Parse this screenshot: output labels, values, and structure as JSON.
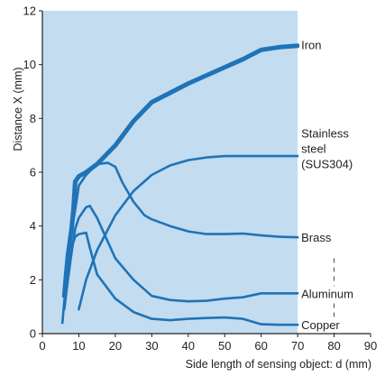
{
  "chart_data": {
    "type": "line",
    "title": "",
    "xlabel": "Side length of sensing object: d (mm)",
    "ylabel": "Distance X (mm)",
    "xlim": [
      0,
      90
    ],
    "ylim": [
      0,
      12
    ],
    "plot_xmax": 70,
    "xticks": [
      0,
      10,
      20,
      30,
      40,
      50,
      60,
      70,
      80,
      90
    ],
    "yticks": [
      0,
      2,
      4,
      6,
      8,
      10,
      12
    ],
    "grid": false,
    "line_color": "#1f73b7",
    "background": "#c3dcf0",
    "series": [
      {
        "name": "Iron",
        "heavy": true,
        "x": [
          6,
          6.5,
          7,
          7.5,
          8,
          8.5,
          9,
          10,
          12,
          15,
          20,
          25,
          30,
          35,
          40,
          45,
          50,
          55,
          60,
          65,
          70
        ],
        "y": [
          1.4,
          2.2,
          2.9,
          3.4,
          3.9,
          4.6,
          5.65,
          5.85,
          6.0,
          6.3,
          7.0,
          7.9,
          8.6,
          8.95,
          9.3,
          9.6,
          9.9,
          10.2,
          10.55,
          10.65,
          10.7
        ]
      },
      {
        "name": "Stainless steel (SUS304)",
        "label_lines": [
          "Stainless",
          "steel",
          "(SUS304)"
        ],
        "x": [
          10,
          12,
          15,
          20,
          25,
          30,
          35,
          40,
          45,
          50,
          55,
          60,
          65,
          70
        ],
        "y": [
          0.9,
          2.0,
          3.1,
          4.4,
          5.3,
          5.9,
          6.25,
          6.45,
          6.55,
          6.6,
          6.6,
          6.6,
          6.6,
          6.6
        ]
      },
      {
        "name": "Brass",
        "x": [
          6,
          7,
          8,
          9,
          10,
          12,
          15,
          18,
          20,
          22,
          25,
          28,
          30,
          35,
          40,
          45,
          50,
          55,
          60,
          65,
          70
        ],
        "y": [
          1.6,
          2.8,
          3.8,
          4.6,
          5.5,
          5.9,
          6.3,
          6.35,
          6.2,
          5.6,
          4.9,
          4.4,
          4.25,
          4.0,
          3.8,
          3.7,
          3.7,
          3.72,
          3.65,
          3.6,
          3.58
        ]
      },
      {
        "name": "Aluminum",
        "x": [
          6,
          7,
          8,
          9,
          10,
          12,
          13,
          15,
          18,
          20,
          25,
          30,
          35,
          40,
          45,
          50,
          55,
          60,
          65,
          70
        ],
        "y": [
          0.9,
          2.0,
          3.0,
          3.9,
          4.3,
          4.7,
          4.75,
          4.3,
          3.4,
          2.8,
          2.0,
          1.4,
          1.25,
          1.2,
          1.22,
          1.3,
          1.35,
          1.5,
          1.5,
          1.5
        ]
      },
      {
        "name": "Copper",
        "x": [
          5.5,
          6,
          7,
          8,
          9,
          10,
          12,
          13,
          15,
          20,
          25,
          30,
          35,
          40,
          45,
          50,
          55,
          60,
          65,
          70
        ],
        "y": [
          0.4,
          1.2,
          2.2,
          3.2,
          3.6,
          3.7,
          3.75,
          3.2,
          2.2,
          1.3,
          0.8,
          0.55,
          0.5,
          0.55,
          0.58,
          0.6,
          0.55,
          0.35,
          0.33,
          0.33
        ]
      }
    ]
  }
}
